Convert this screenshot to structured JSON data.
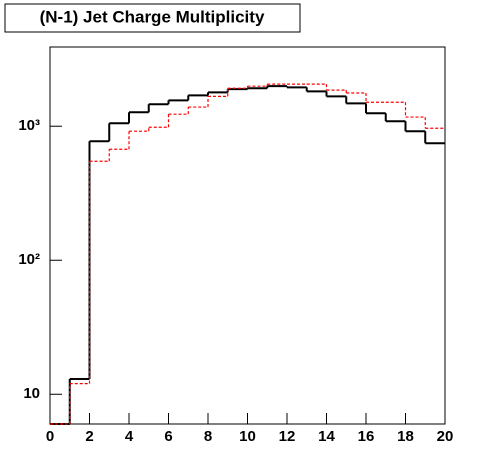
{
  "chart_data": {
    "type": "histogram",
    "title": "(N-1) Jet Charge Multiplicity",
    "bins": [
      0,
      1,
      2,
      3,
      4,
      5,
      6,
      7,
      8,
      9,
      10,
      11,
      12,
      13,
      14,
      15,
      16,
      17,
      18,
      19,
      20
    ],
    "series": [
      {
        "color": "#000000",
        "dash": false,
        "values": [
          0,
          13,
          773,
          1052,
          1270,
          1460,
          1560,
          1700,
          1790,
          1890,
          1920,
          1990,
          1950,
          1820,
          1670,
          1480,
          1250,
          1090,
          918,
          747
        ]
      },
      {
        "color": "#ff0000",
        "dash": true,
        "values": [
          0,
          12,
          548,
          673,
          918,
          983,
          1230,
          1390,
          1670,
          1920,
          1990,
          2060,
          2060,
          2060,
          1860,
          1770,
          1510,
          1510,
          1170,
          966
        ]
      }
    ],
    "xlim": [
      0,
      20
    ],
    "xticks": [
      0,
      2,
      4,
      6,
      8,
      10,
      12,
      14,
      16,
      18,
      20
    ],
    "ylim": [
      6,
      3900
    ],
    "log_y": true,
    "yticks": [
      10,
      {
        "value": 100,
        "label": "10²"
      },
      {
        "value": 1000,
        "label": "10³"
      }
    ]
  }
}
